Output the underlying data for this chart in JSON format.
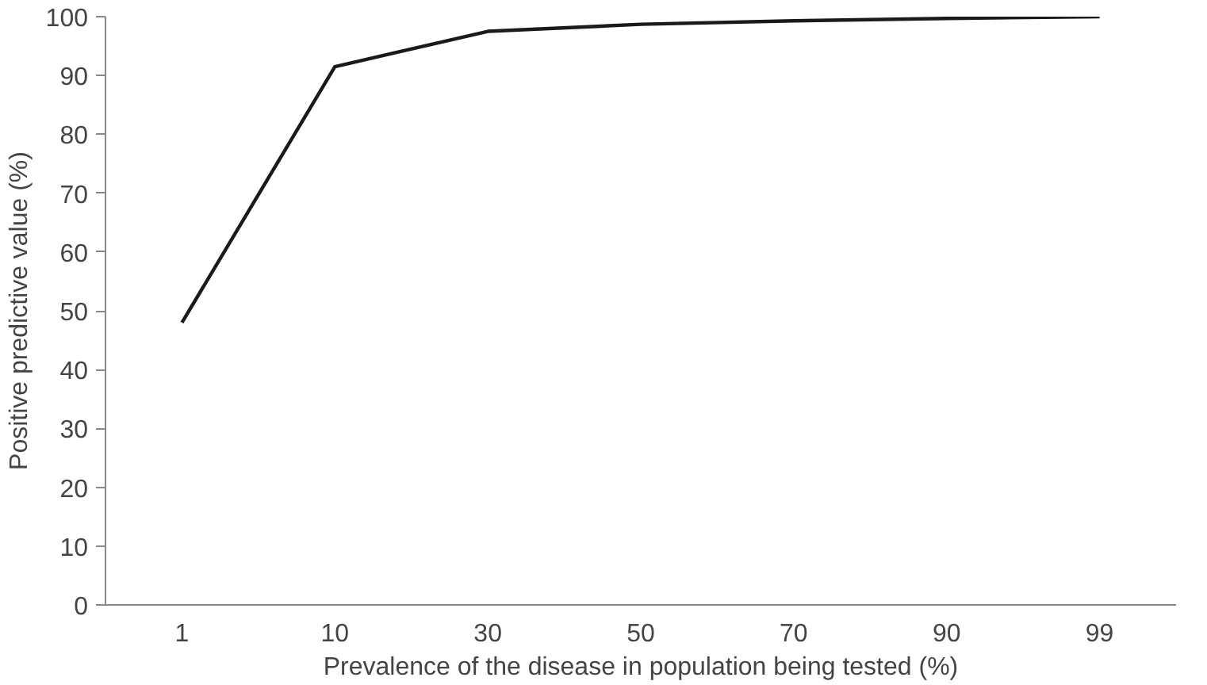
{
  "chart_data": {
    "type": "line",
    "xlabel": "Prevalence of the disease in population being tested (%)",
    "ylabel": "Positive predictive value (%)",
    "categories": [
      "1",
      "10",
      "30",
      "50",
      "70",
      "90",
      "99"
    ],
    "series": [
      {
        "color": "#1a1a1a",
        "values": [
          48,
          91.5,
          97.5,
          98.7,
          99.3,
          99.7,
          100
        ]
      }
    ],
    "ylim": [
      0,
      100
    ],
    "yticks": [
      0,
      10,
      20,
      30,
      40,
      50,
      60,
      70,
      80,
      90,
      100
    ],
    "grid": false,
    "marker": "none",
    "line_style": "solid"
  }
}
